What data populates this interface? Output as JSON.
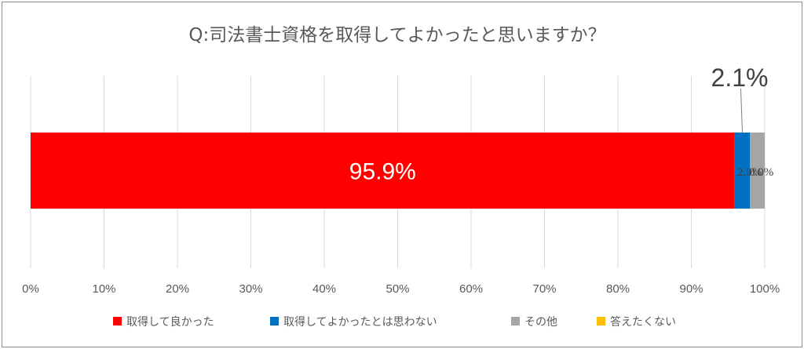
{
  "chart_data": {
    "type": "bar",
    "orientation": "horizontal",
    "stacked": true,
    "title": "Q:司法書士資格を取得してよかったと思いますか？",
    "xlim": [
      0,
      100
    ],
    "x_ticks": [
      "0%",
      "10%",
      "20%",
      "30%",
      "40%",
      "50%",
      "60%",
      "70%",
      "80%",
      "90%",
      "100%"
    ],
    "grid": "vertical",
    "legend_position": "bottom",
    "series": [
      {
        "name": "取得して良かった",
        "value": 95.9,
        "label": "95.9%",
        "color": "#ff0000"
      },
      {
        "name": "取得してよかったとは思わない",
        "value": 2.1,
        "label": "2.1%",
        "color": "#0070c0"
      },
      {
        "name": "その他",
        "value": 2.0,
        "label": "2.0%",
        "color": "#a5a5a5"
      },
      {
        "name": "答えたくない",
        "value": 0.0,
        "label": "0.0%",
        "color": "#ffc000"
      }
    ]
  }
}
